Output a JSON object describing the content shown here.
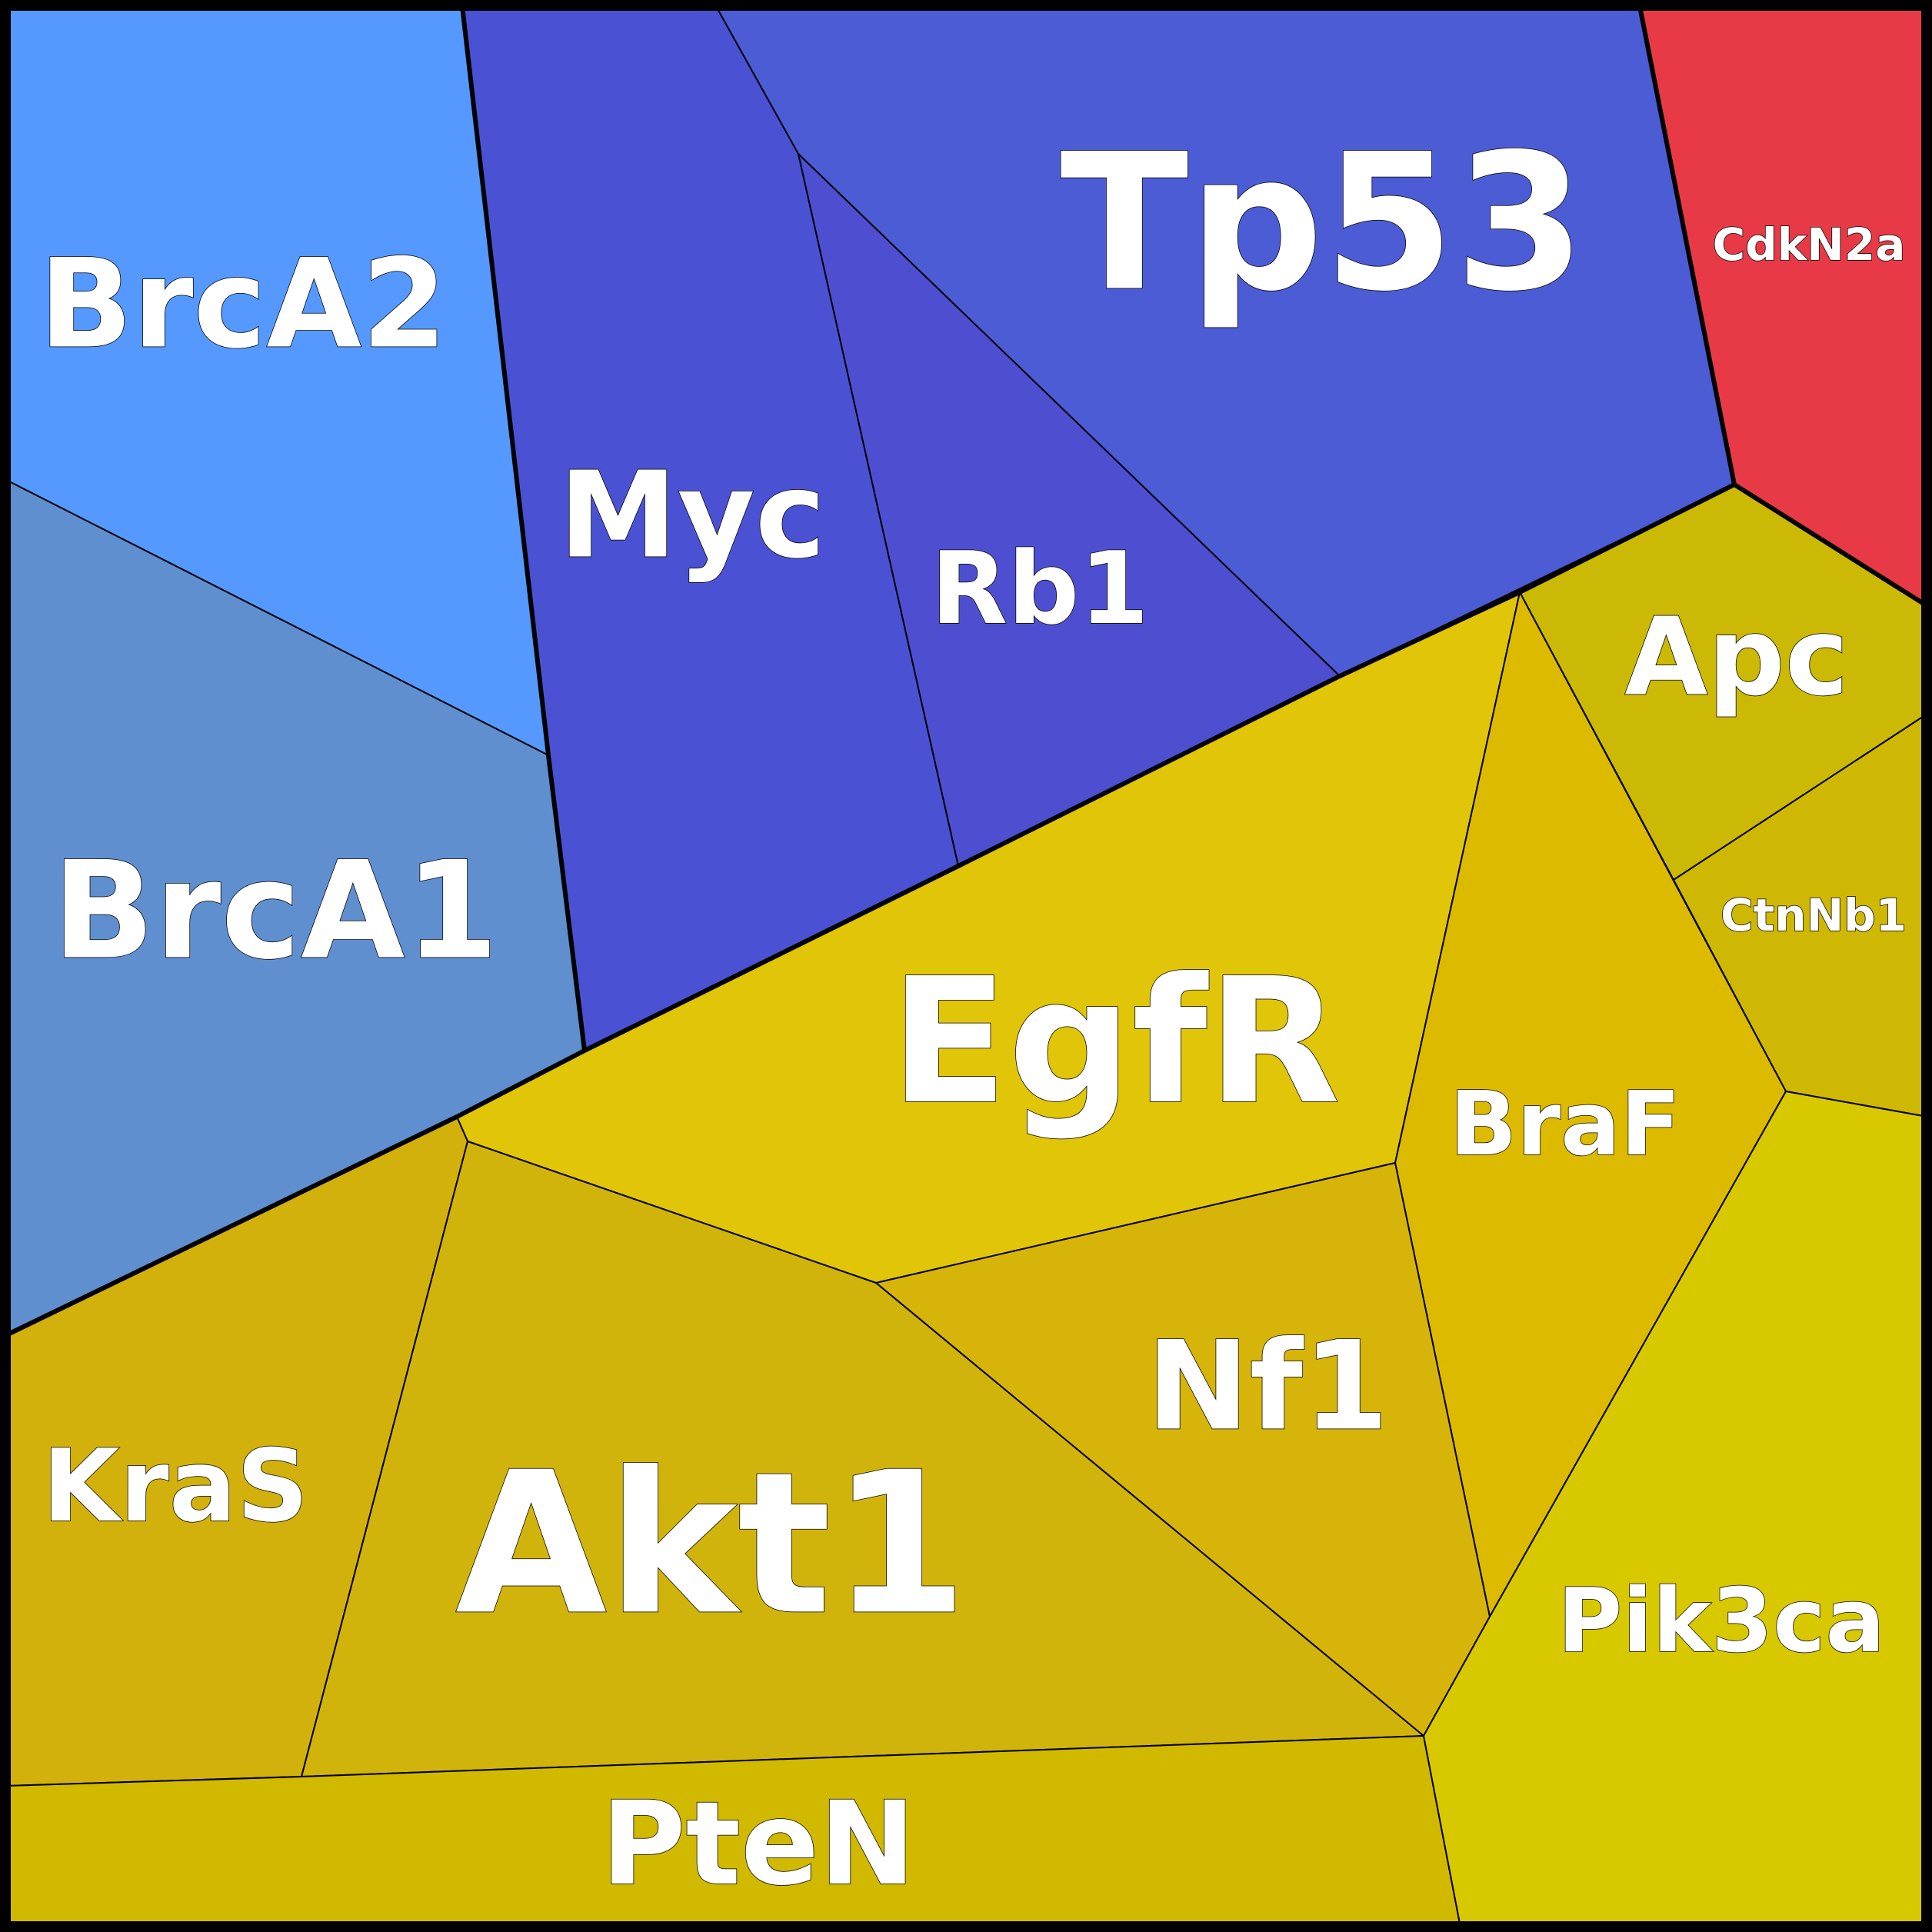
{
  "cells": [
    {
      "id": "brca2",
      "label": "BrcA2",
      "color": "#5599ff"
    },
    {
      "id": "brca1",
      "label": "BrcA1",
      "color": "#5f8fcf"
    },
    {
      "id": "myc",
      "label": "Myc",
      "color": "#4a52d3"
    },
    {
      "id": "rb1",
      "label": "Rb1",
      "color": "#4e4fd0"
    },
    {
      "id": "tp53",
      "label": "Tp53",
      "color": "#4c5cd4"
    },
    {
      "id": "cdkn2a",
      "label": "CdkN2a",
      "color": "#e83a46"
    },
    {
      "id": "apc",
      "label": "Apc",
      "color": "#cbb905"
    },
    {
      "id": "ctnnb1",
      "label": "CtnNb1",
      "color": "#cfb804"
    },
    {
      "id": "egfr",
      "label": "EgfR",
      "color": "#e0c508"
    },
    {
      "id": "braf",
      "label": "BraF",
      "color": "#dcba00"
    },
    {
      "id": "nf1",
      "label": "Nf1",
      "color": "#d6b40a"
    },
    {
      "id": "kras",
      "label": "KraS",
      "color": "#d2b10c"
    },
    {
      "id": "akt1",
      "label": "Akt1",
      "color": "#d0b40c"
    },
    {
      "id": "pten",
      "label": "PteN",
      "color": "#d1b900"
    },
    {
      "id": "pik3ca",
      "label": "Pik3ca",
      "color": "#d8c800"
    }
  ]
}
